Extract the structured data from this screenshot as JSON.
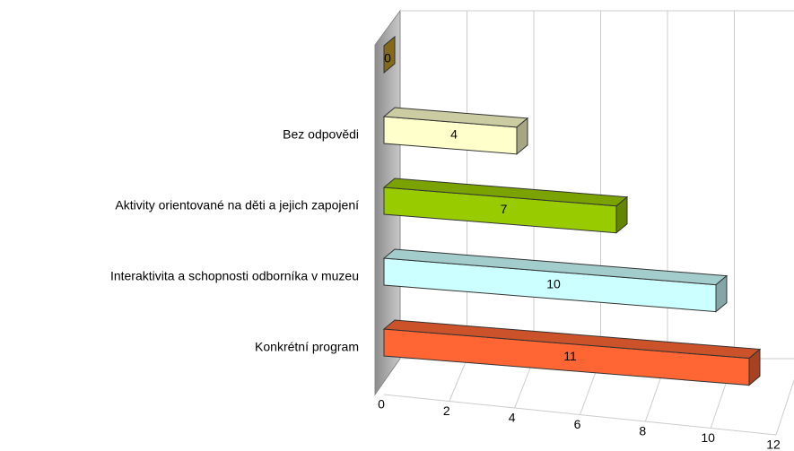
{
  "chart_data": {
    "type": "bar3d_horizontal",
    "categories": [
      null,
      "Bez odpovědi",
      "Aktivity orientované na děti a jejich zapojení",
      "Interaktivita a schopnosti odborníka v muzeu",
      "Konkrétní program"
    ],
    "values": [
      0,
      4,
      7,
      10,
      11
    ],
    "colors": [
      "#c9a227",
      "#ffffcc",
      "#99cc00",
      "#ccffff",
      "#ff6633"
    ],
    "xlim": [
      0,
      12
    ],
    "xticks": [
      0,
      2,
      4,
      6,
      8,
      10,
      12
    ],
    "grid": true
  }
}
